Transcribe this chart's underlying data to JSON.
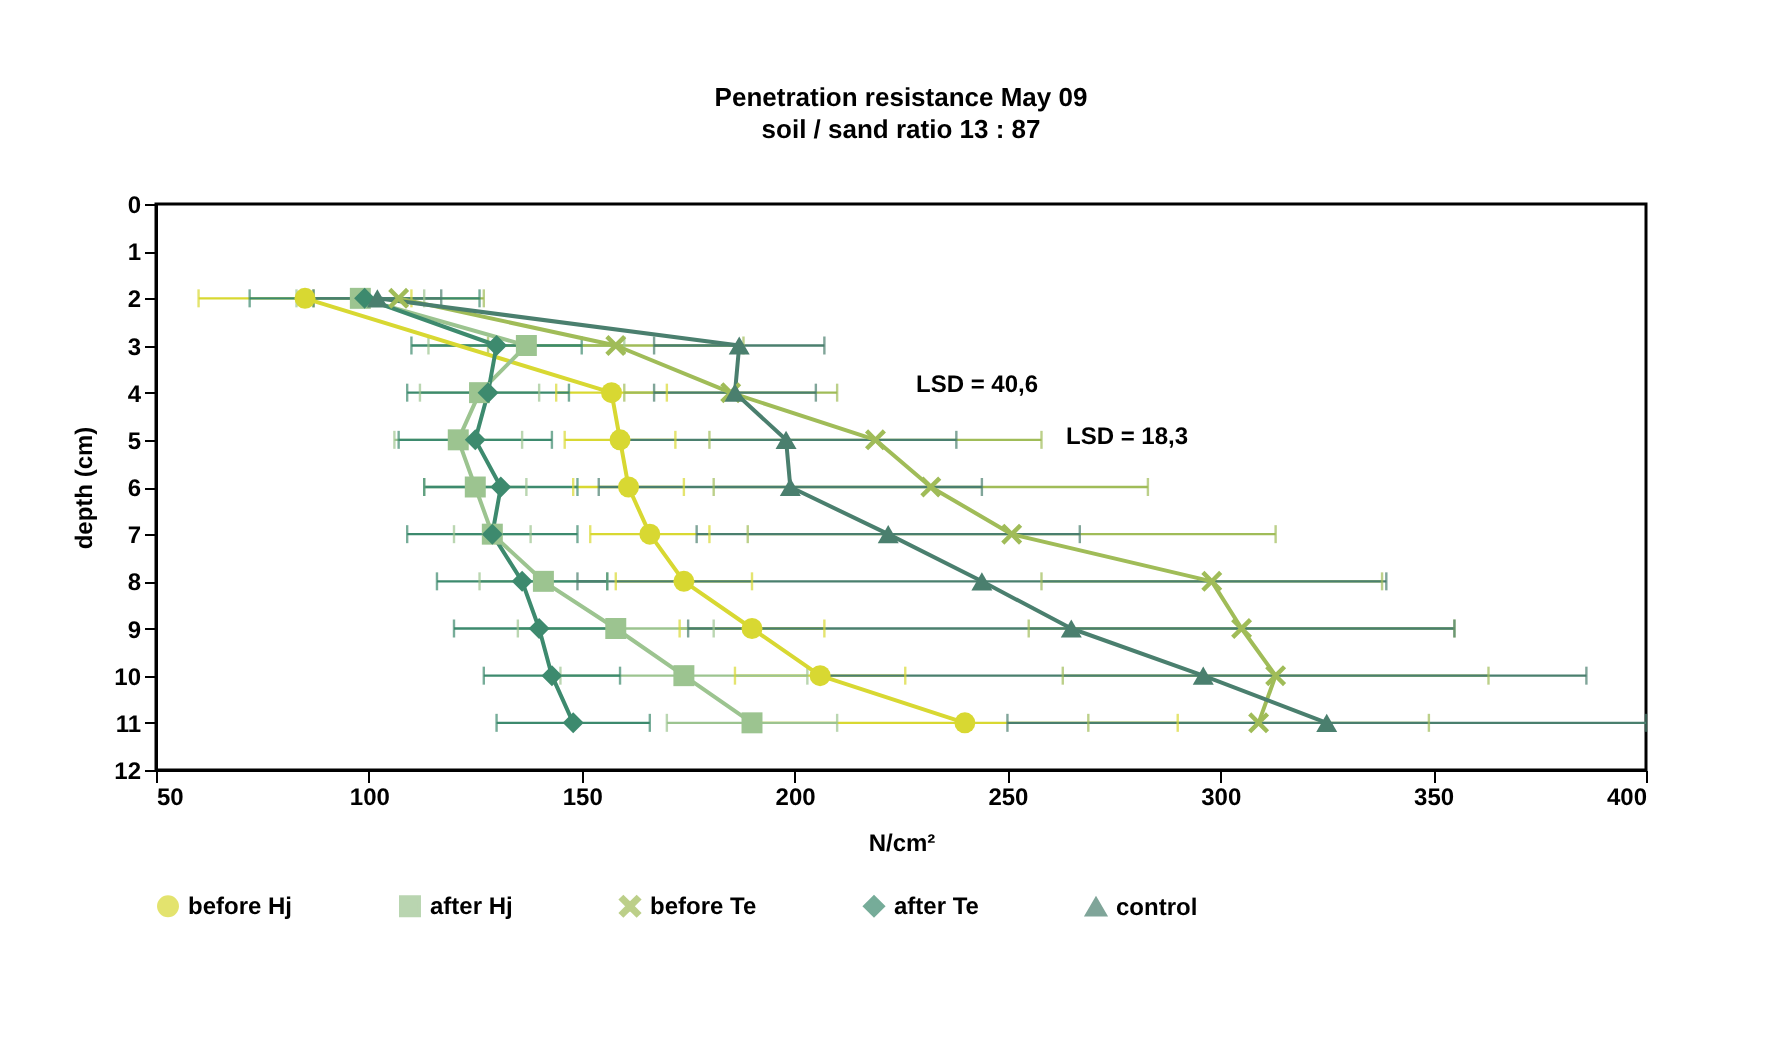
{
  "chart_data": {
    "type": "line",
    "title": "Penetration resistance May 09",
    "subtitle": "soil / sand ratio 13 : 87",
    "xlabel": "N/cm²",
    "ylabel": "depth (cm)",
    "xlim": [
      50,
      400
    ],
    "xticks": [
      50,
      100,
      150,
      200,
      250,
      300,
      350,
      400
    ],
    "ylim": [
      12,
      0
    ],
    "yticks": [
      0,
      1,
      2,
      3,
      4,
      5,
      6,
      7,
      8,
      9,
      10,
      11,
      12
    ],
    "grid": false,
    "legend": "bottom",
    "annotations": [
      "LSD = 40,6",
      "LSD = 18,3"
    ],
    "series": [
      {
        "name": "before Hj",
        "color": "#d8d832",
        "marker": "circle",
        "x": [
          85,
          null,
          157,
          159,
          161,
          166,
          174,
          190,
          206,
          240
        ],
        "values": [
          2,
          null,
          4,
          5,
          6,
          7,
          8,
          9,
          10,
          11
        ],
        "xerrors": [
          25,
          null,
          13,
          13,
          13,
          14,
          16,
          17,
          20,
          50
        ]
      },
      {
        "name": "after Hj",
        "color": "#9cc490",
        "marker": "square",
        "x": [
          98,
          137,
          126,
          121,
          125,
          129,
          141,
          158,
          174,
          190
        ],
        "values": [
          2,
          3,
          4,
          5,
          6,
          7,
          8,
          9,
          10,
          11
        ],
        "xerrors": [
          15,
          23,
          14,
          15,
          12,
          9,
          15,
          23,
          29,
          20
        ]
      },
      {
        "name": "before Te",
        "color": "#a0bc58",
        "marker": "cross",
        "x": [
          107,
          158,
          185,
          219,
          232,
          251,
          298,
          305,
          313,
          309
        ],
        "values": [
          2,
          3,
          4,
          5,
          6,
          7,
          8,
          9,
          10,
          11
        ],
        "xerrors": [
          20,
          30,
          25,
          39,
          51,
          62,
          40,
          50,
          50,
          40
        ]
      },
      {
        "name": "after Te",
        "color": "#3d8a6e",
        "marker": "diamond",
        "x": [
          99,
          130,
          128,
          125,
          131,
          129,
          136,
          140,
          143,
          148
        ],
        "values": [
          2,
          3,
          4,
          5,
          6,
          7,
          8,
          9,
          10,
          11
        ],
        "xerrors": [
          27,
          20,
          19,
          18,
          18,
          20,
          20,
          20,
          16,
          18
        ]
      },
      {
        "name": "control",
        "color": "#4a7f6e",
        "marker": "triangle",
        "x": [
          102,
          187,
          186,
          198,
          199,
          222,
          244,
          265,
          296,
          325
        ],
        "values": [
          2,
          3,
          4,
          5,
          6,
          7,
          8,
          9,
          10,
          11
        ],
        "xerrors": [
          15,
          20,
          19,
          40,
          45,
          45,
          95,
          90,
          90,
          75
        ]
      }
    ]
  }
}
